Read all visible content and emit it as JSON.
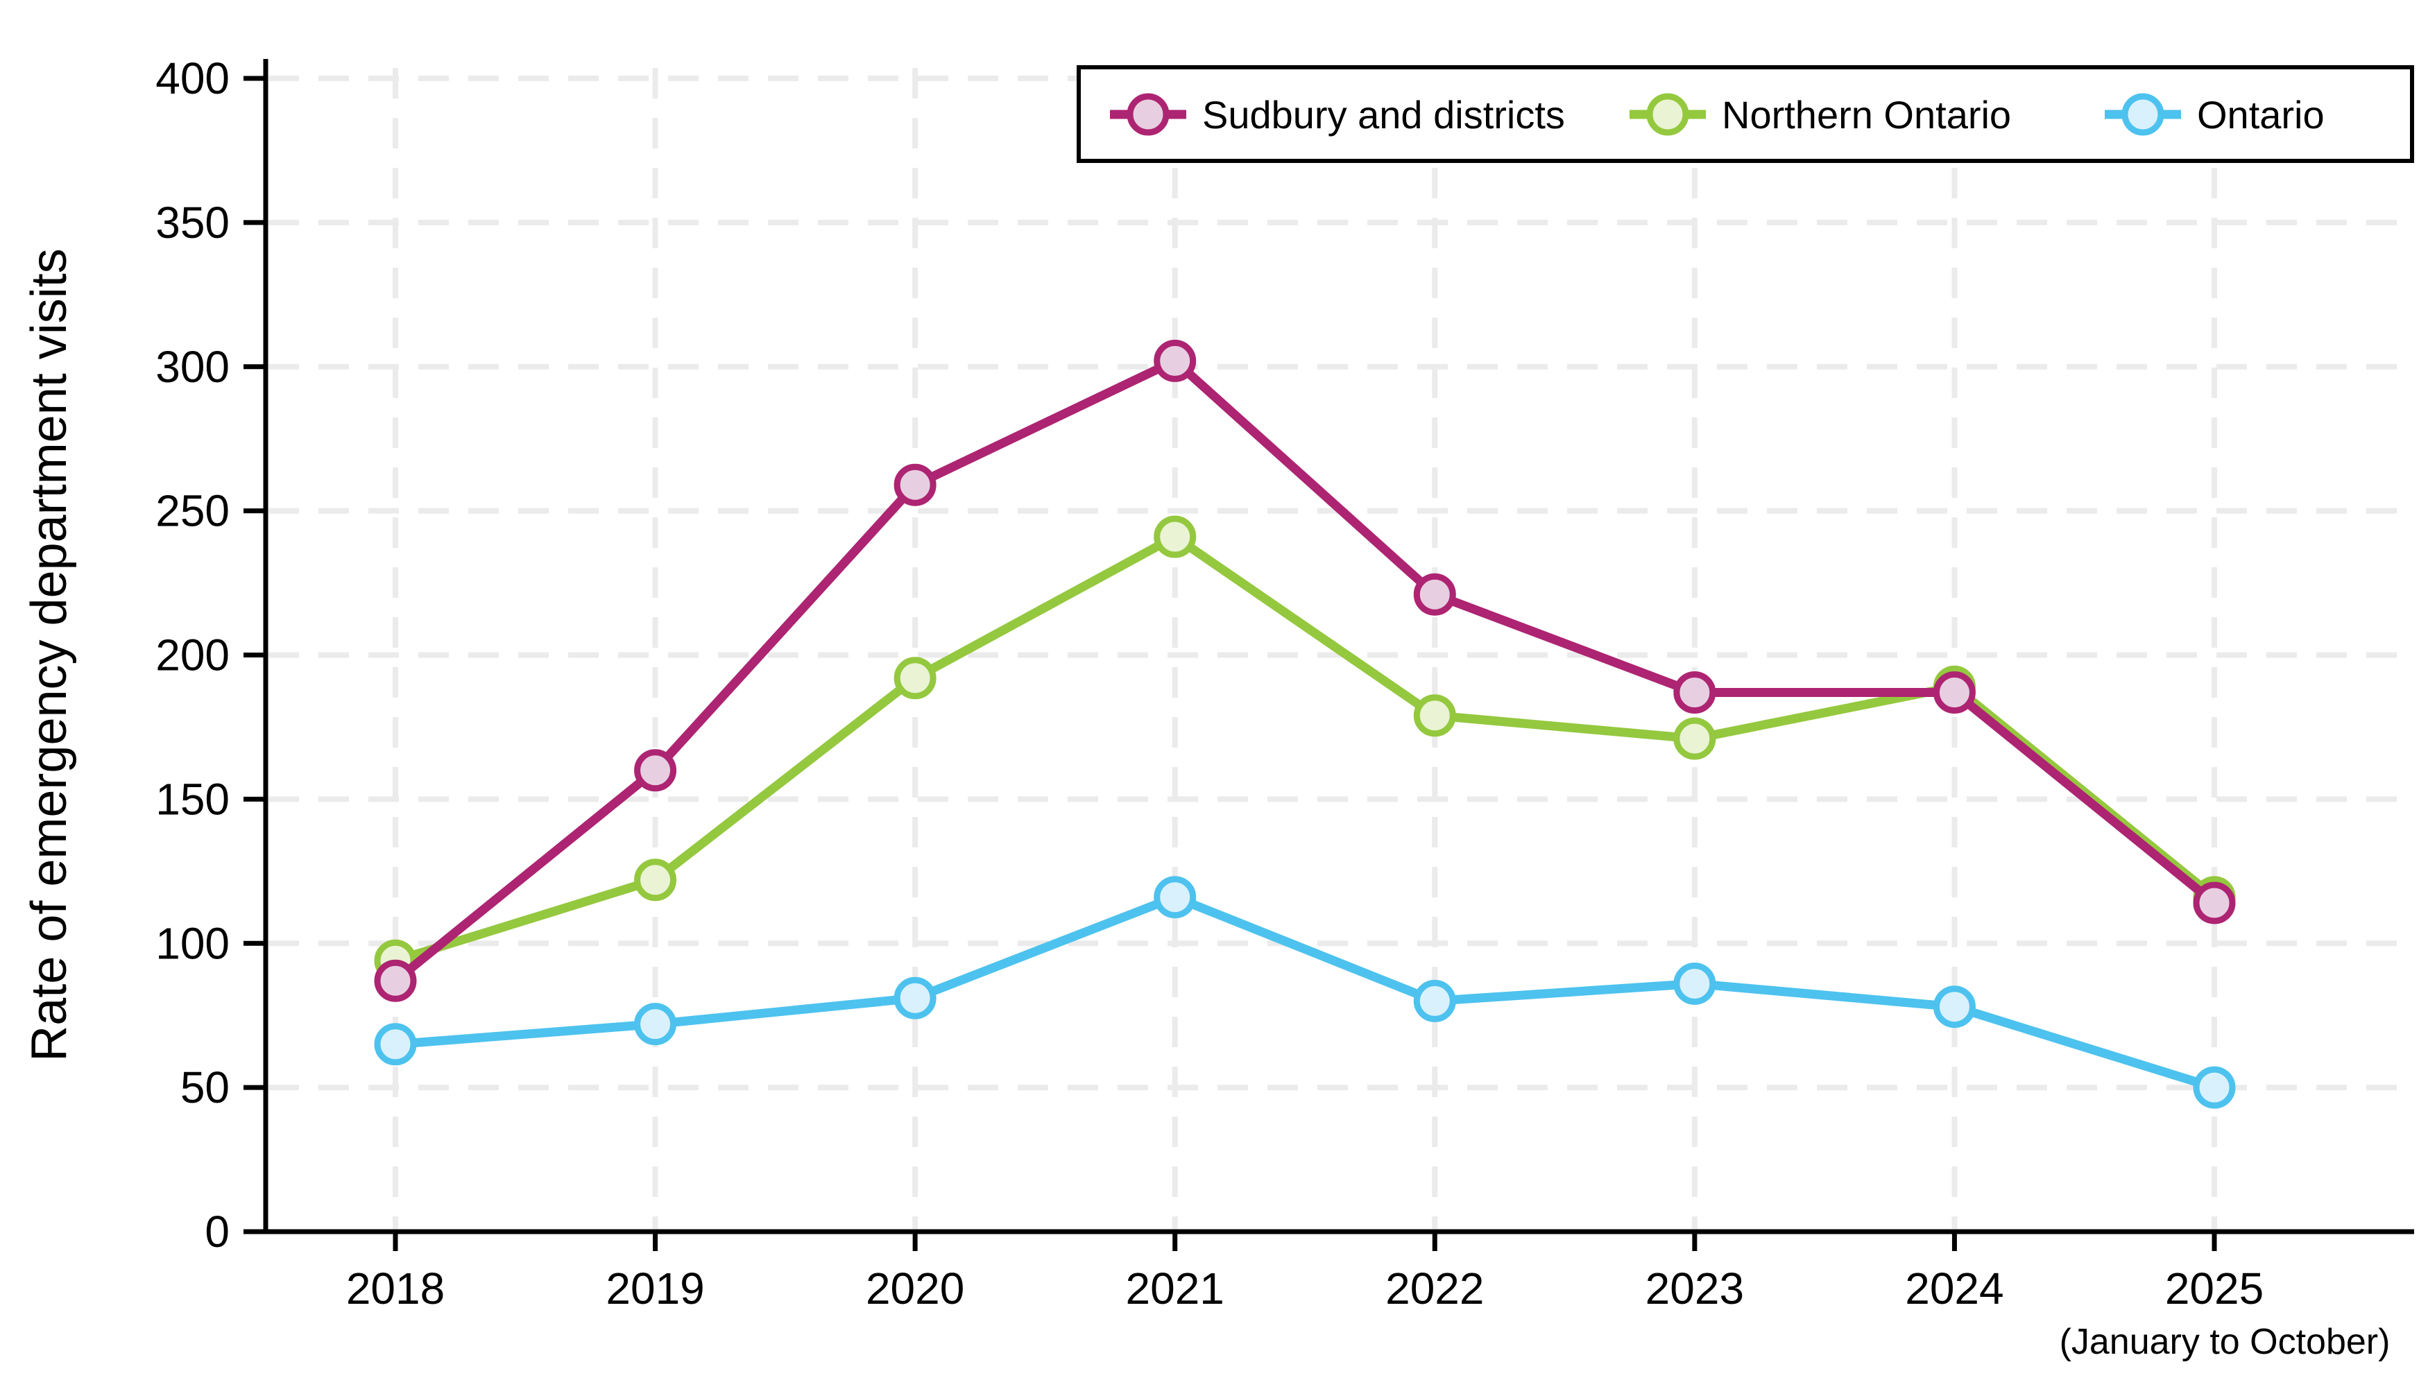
{
  "chart_data": {
    "type": "line",
    "title": "",
    "ylabel": "Rate of emergency department visits",
    "xlabel": "",
    "x_note": "(January to October)",
    "categories": [
      "2018",
      "2019",
      "2020",
      "2021",
      "2022",
      "2023",
      "2024",
      "2025"
    ],
    "series": [
      {
        "name": "Ontario",
        "values": [
          65,
          72,
          81,
          116,
          80,
          86,
          78,
          50
        ],
        "line_color": "#4dc2ee",
        "marker_fill": "#d9f1fc"
      },
      {
        "name": "Northern Ontario",
        "values": [
          94,
          122,
          192,
          241,
          179,
          171,
          189,
          116
        ],
        "line_color": "#94c83e",
        "marker_fill": "#eaf3d3"
      },
      {
        "name": "Sudbury and districts",
        "values": [
          87,
          160,
          259,
          302,
          221,
          187,
          187,
          114
        ],
        "line_color": "#ad2472",
        "marker_fill": "#e7cfe1"
      }
    ],
    "legend_order": [
      "Sudbury and districts",
      "Northern Ontario",
      "Ontario"
    ],
    "legend_position": "top",
    "ylim": [
      0,
      400
    ],
    "ytick_interval": 50,
    "yticks": [
      0,
      50,
      100,
      150,
      200,
      250,
      300,
      350,
      400
    ],
    "grid": true,
    "grid_color": "#ebebeb",
    "axis_color": "#000000",
    "background_color": "#ffffff"
  }
}
